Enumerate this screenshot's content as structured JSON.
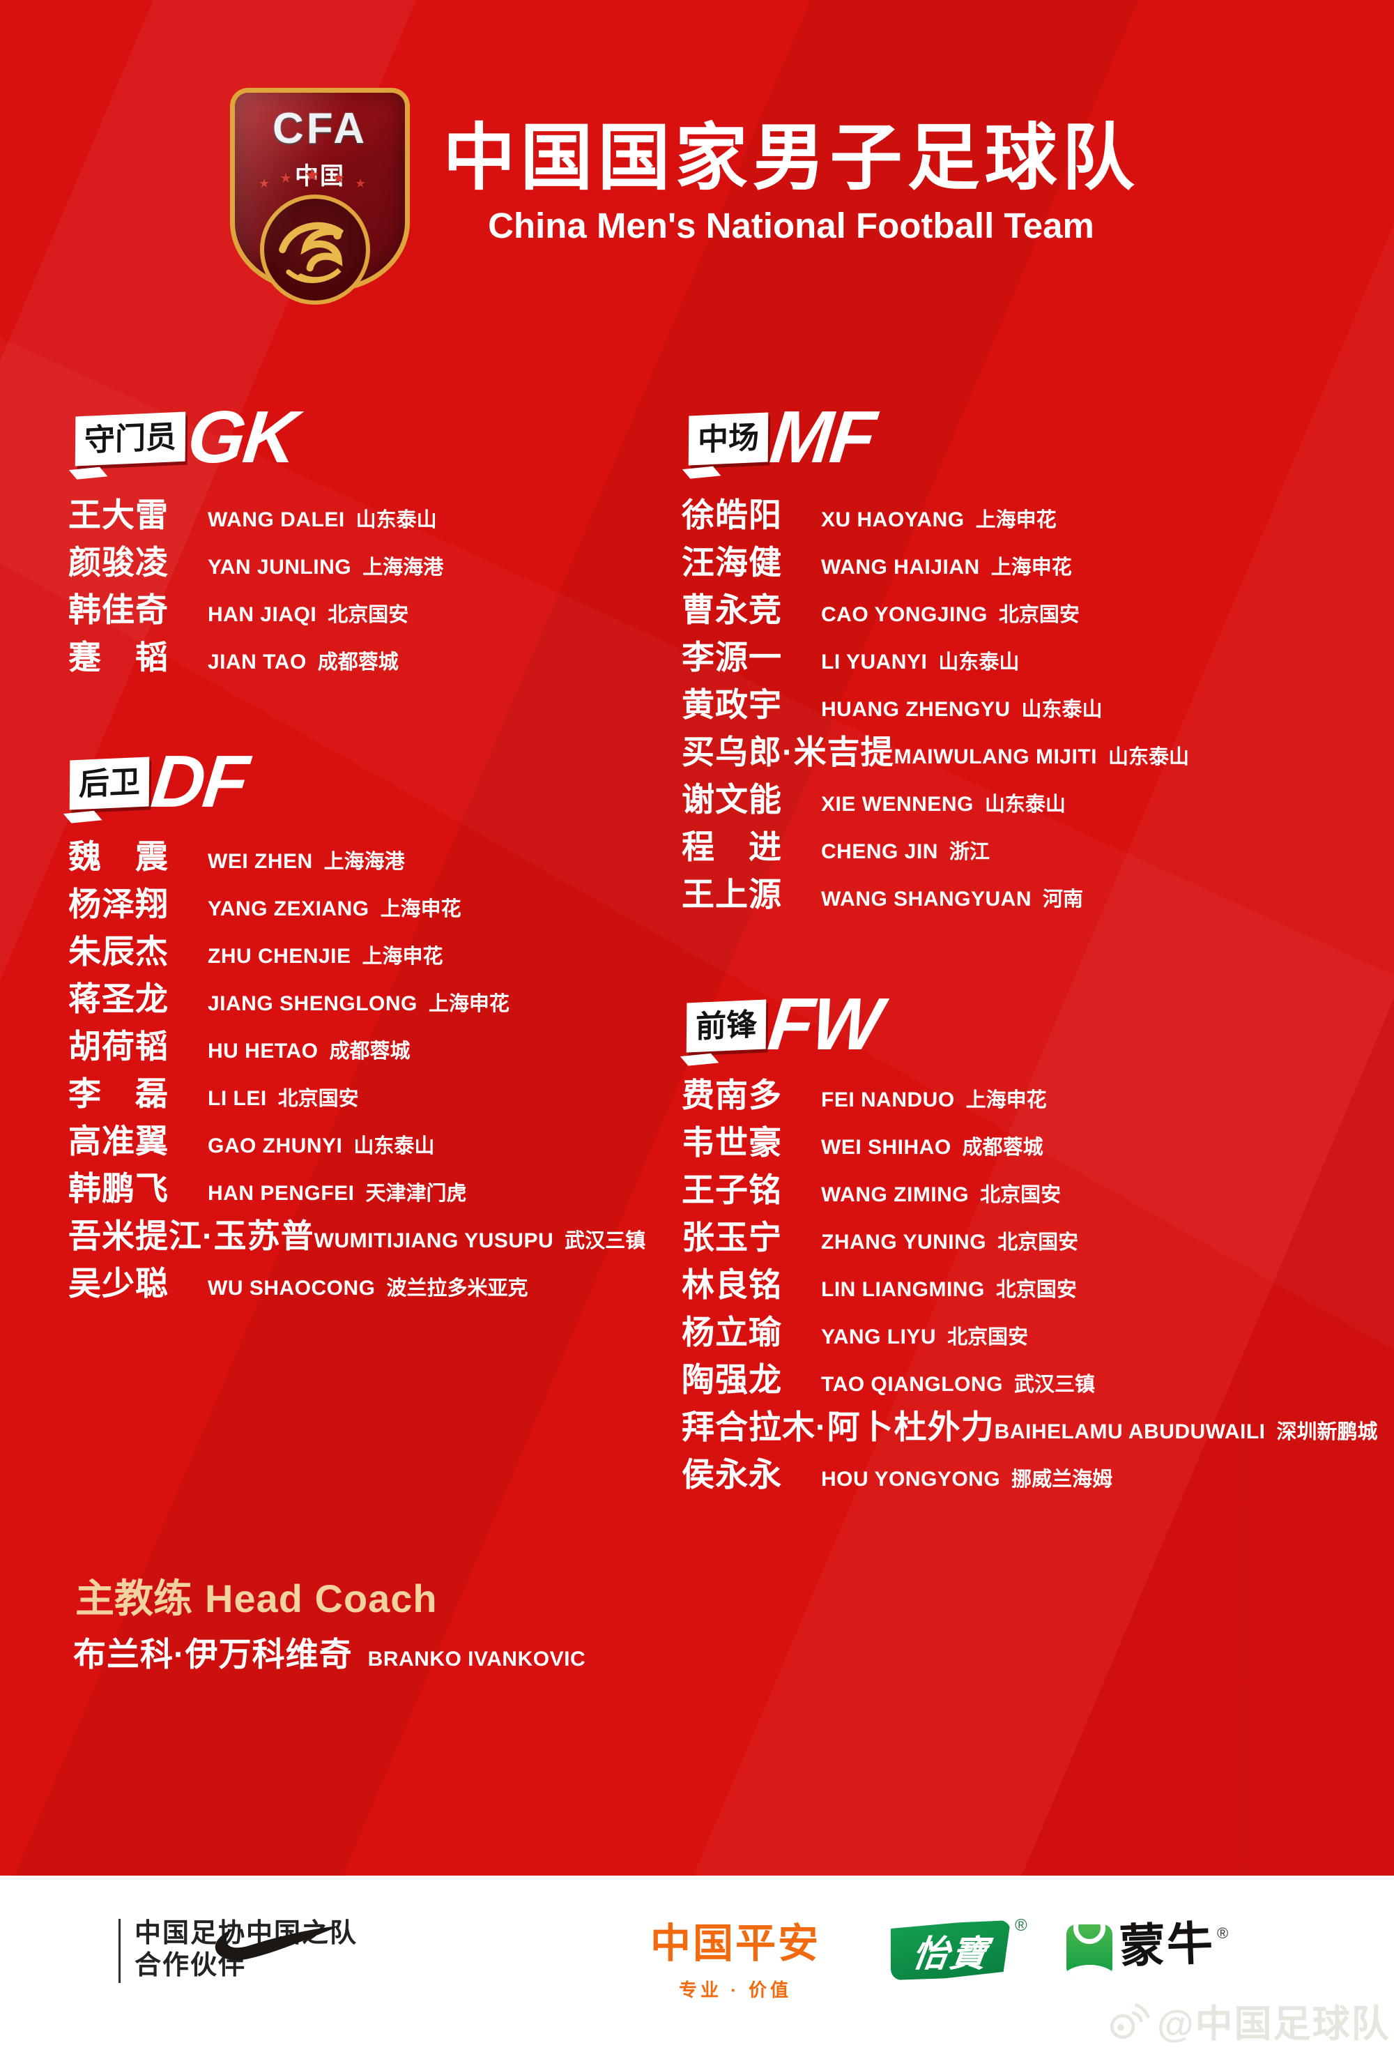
{
  "header": {
    "logo_top": "CFA",
    "logo_sub": "中国",
    "title_zh": "中国国家男子足球队",
    "title_en": "China Men's National Football Team"
  },
  "sections": [
    {
      "label_zh": "守门员",
      "label_en": "GK",
      "players": [
        {
          "zh": "王大雷",
          "en": "WANG DALEI",
          "club": "山东泰山"
        },
        {
          "zh": "颜骏凌",
          "en": "YAN JUNLING",
          "club": "上海海港"
        },
        {
          "zh": "韩佳奇",
          "en": "HAN JIAQI",
          "club": "北京国安"
        },
        {
          "zh": "蹇　韬",
          "en": "JIAN TAO",
          "club": "成都蓉城"
        }
      ]
    },
    {
      "label_zh": "后卫",
      "label_en": "DF",
      "players": [
        {
          "zh": "魏　震",
          "en": "WEI ZHEN",
          "club": "上海海港"
        },
        {
          "zh": "杨泽翔",
          "en": "YANG ZEXIANG",
          "club": "上海申花"
        },
        {
          "zh": "朱辰杰",
          "en": "ZHU CHENJIE",
          "club": "上海申花"
        },
        {
          "zh": "蒋圣龙",
          "en": "JIANG SHENGLONG",
          "club": "上海申花"
        },
        {
          "zh": "胡荷韬",
          "en": "HU HETAO",
          "club": "成都蓉城"
        },
        {
          "zh": "李　磊",
          "en": "LI LEI",
          "club": "北京国安"
        },
        {
          "zh": "高准翼",
          "en": "GAO ZHUNYI",
          "club": "山东泰山"
        },
        {
          "zh": "韩鹏飞",
          "en": "HAN PENGFEI",
          "club": "天津津门虎"
        },
        {
          "zh": "吾米提江·玉苏普",
          "en": "WUMITIJIANG YUSUPU",
          "club": "武汉三镇"
        },
        {
          "zh": "吴少聪",
          "en": "WU SHAOCONG",
          "club": "波兰拉多米亚克"
        }
      ]
    },
    {
      "label_zh": "中场",
      "label_en": "MF",
      "players": [
        {
          "zh": "徐皓阳",
          "en": "XU HAOYANG",
          "club": "上海申花"
        },
        {
          "zh": "汪海健",
          "en": "WANG HAIJIAN",
          "club": "上海申花"
        },
        {
          "zh": "曹永竞",
          "en": "CAO YONGJING",
          "club": "北京国安"
        },
        {
          "zh": "李源一",
          "en": "LI YUANYI",
          "club": "山东泰山"
        },
        {
          "zh": "黄政宇",
          "en": "HUANG ZHENGYU",
          "club": "山东泰山"
        },
        {
          "zh": "买乌郎·米吉提",
          "en": "MAIWULANG MIJITI",
          "club": "山东泰山"
        },
        {
          "zh": "谢文能",
          "en": "XIE WENNENG",
          "club": "山东泰山"
        },
        {
          "zh": "程　进",
          "en": "CHENG JIN",
          "club": "浙江"
        },
        {
          "zh": "王上源",
          "en": "WANG SHANGYUAN",
          "club": "河南"
        }
      ]
    },
    {
      "label_zh": "前锋",
      "label_en": "FW",
      "players": [
        {
          "zh": "费南多",
          "en": "FEI NANDUO",
          "club": "上海申花"
        },
        {
          "zh": "韦世豪",
          "en": "WEI SHIHAO",
          "club": "成都蓉城"
        },
        {
          "zh": "王子铭",
          "en": "WANG ZIMING",
          "club": "北京国安"
        },
        {
          "zh": "张玉宁",
          "en": "ZHANG YUNING",
          "club": "北京国安"
        },
        {
          "zh": "林良铭",
          "en": "LIN LIANGMING",
          "club": "北京国安"
        },
        {
          "zh": "杨立瑜",
          "en": "YANG LIYU",
          "club": "北京国安"
        },
        {
          "zh": "陶强龙",
          "en": "TAO QIANGLONG",
          "club": "武汉三镇"
        },
        {
          "zh": "拜合拉木·阿卜杜外力",
          "en": "BAIHELAMU ABUDUWAILI",
          "club": "深圳新鹏城"
        },
        {
          "zh": "侯永永",
          "en": "HOU YONGYONG",
          "club": "挪威兰海姆"
        }
      ]
    }
  ],
  "coach": {
    "label_zh": "主教练",
    "label_en": "Head Coach",
    "name_zh": "布兰科·伊万科维奇",
    "name_en": "BRANKO IVANKOVIC"
  },
  "footer": {
    "partner_line1": "中国足协中国之队",
    "partner_line2": "合作伙伴",
    "pingan": "中国平安",
    "pingan_slogan": "专业 · 价值",
    "yibao": "怡寶",
    "mengniu": "蒙牛",
    "reg": "®",
    "watermark": "@中国足球队"
  },
  "colors": {
    "background_red": "#d8100f",
    "footer_white": "#ffffff",
    "coach_gold": "#f2d2a0",
    "pingan_orange": "#f26a10",
    "yibao_green": "#0a8f43",
    "mengniu_green": "#0f9c43"
  }
}
